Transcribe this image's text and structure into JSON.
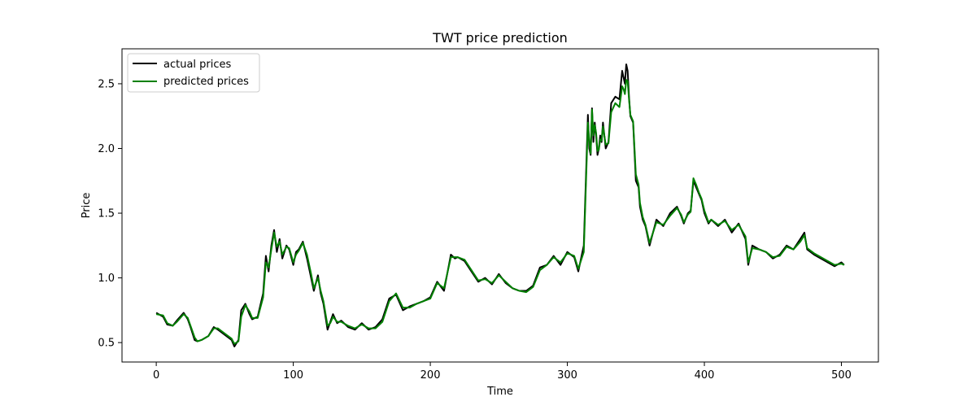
{
  "chart_data": {
    "type": "line",
    "title": "TWT price prediction",
    "xlabel": "Time",
    "ylabel": "Price",
    "xlim": [
      -25,
      527
    ],
    "ylim": [
      0.35,
      2.77
    ],
    "xticks": [
      0,
      100,
      200,
      300,
      400,
      500
    ],
    "yticks": [
      0.5,
      1.0,
      1.5,
      2.0,
      2.5
    ],
    "xtick_labels": [
      "0",
      "100",
      "200",
      "300",
      "400",
      "500"
    ],
    "ytick_labels": [
      "0.5",
      "1.0",
      "1.5",
      "2.0",
      "2.5"
    ],
    "grid": false,
    "legend_position": "upper-left",
    "series": [
      {
        "name": "actual prices",
        "color": "#000000",
        "x": [
          0,
          5,
          8,
          12,
          15,
          20,
          23,
          25,
          28,
          30,
          33,
          38,
          42,
          45,
          50,
          55,
          57,
          60,
          62,
          65,
          68,
          70,
          74,
          78,
          80,
          82,
          84,
          86,
          88,
          90,
          92,
          95,
          97,
          100,
          102,
          104,
          107,
          110,
          113,
          115,
          118,
          120,
          122,
          125,
          127,
          129,
          132,
          135,
          140,
          145,
          150,
          155,
          160,
          165,
          170,
          175,
          180,
          185,
          190,
          195,
          200,
          205,
          210,
          215,
          218,
          220,
          225,
          230,
          235,
          240,
          245,
          250,
          255,
          260,
          265,
          270,
          275,
          280,
          285,
          290,
          295,
          300,
          305,
          308,
          312,
          315,
          316,
          317,
          318,
          319,
          320,
          321,
          322,
          323,
          324,
          325,
          326,
          328,
          330,
          332,
          335,
          338,
          340,
          341,
          342,
          343,
          344,
          345,
          346,
          348,
          350,
          352,
          353,
          355,
          357,
          360,
          365,
          370,
          375,
          380,
          383,
          385,
          388,
          390,
          392,
          394,
          396,
          398,
          400,
          403,
          405,
          410,
          415,
          420,
          425,
          430,
          432,
          435,
          440,
          445,
          450,
          455,
          460,
          465,
          470,
          473,
          475,
          480,
          485,
          490,
          495,
          500,
          502
        ],
        "y": [
          0.73,
          0.7,
          0.64,
          0.63,
          0.67,
          0.73,
          0.68,
          0.62,
          0.52,
          0.51,
          0.52,
          0.55,
          0.62,
          0.6,
          0.56,
          0.52,
          0.47,
          0.52,
          0.75,
          0.8,
          0.72,
          0.68,
          0.7,
          0.88,
          1.17,
          1.05,
          1.25,
          1.37,
          1.2,
          1.3,
          1.15,
          1.25,
          1.22,
          1.1,
          1.2,
          1.22,
          1.28,
          1.15,
          1.0,
          0.9,
          1.02,
          0.88,
          0.8,
          0.6,
          0.66,
          0.72,
          0.65,
          0.67,
          0.62,
          0.6,
          0.65,
          0.6,
          0.62,
          0.68,
          0.84,
          0.87,
          0.75,
          0.78,
          0.8,
          0.82,
          0.85,
          0.97,
          0.9,
          1.18,
          1.15,
          1.16,
          1.13,
          1.05,
          0.97,
          1.0,
          0.95,
          1.03,
          0.96,
          0.92,
          0.9,
          0.9,
          0.94,
          1.08,
          1.1,
          1.17,
          1.1,
          1.2,
          1.16,
          1.05,
          1.25,
          2.26,
          2.0,
          1.95,
          2.31,
          2.05,
          2.2,
          2.1,
          1.95,
          2.0,
          2.1,
          2.05,
          2.2,
          2.0,
          2.05,
          2.35,
          2.4,
          2.38,
          2.6,
          2.55,
          2.5,
          2.65,
          2.6,
          2.4,
          2.25,
          2.2,
          1.75,
          1.7,
          1.55,
          1.45,
          1.4,
          1.25,
          1.45,
          1.4,
          1.5,
          1.55,
          1.48,
          1.42,
          1.5,
          1.52,
          1.75,
          1.7,
          1.65,
          1.6,
          1.5,
          1.42,
          1.45,
          1.4,
          1.45,
          1.35,
          1.42,
          1.3,
          1.1,
          1.25,
          1.22,
          1.2,
          1.15,
          1.18,
          1.25,
          1.22,
          1.3,
          1.35,
          1.22,
          1.18,
          1.15,
          1.12,
          1.09,
          1.12,
          1.1
        ]
      },
      {
        "name": "predicted prices",
        "color": "#008000",
        "x": [
          0,
          5,
          8,
          12,
          15,
          20,
          23,
          25,
          28,
          30,
          33,
          38,
          42,
          45,
          50,
          55,
          57,
          60,
          62,
          65,
          68,
          70,
          74,
          78,
          80,
          82,
          84,
          86,
          88,
          90,
          92,
          95,
          97,
          100,
          102,
          104,
          107,
          110,
          113,
          115,
          118,
          120,
          122,
          125,
          127,
          129,
          132,
          135,
          140,
          145,
          150,
          155,
          160,
          165,
          170,
          175,
          180,
          185,
          190,
          195,
          200,
          205,
          210,
          215,
          218,
          220,
          225,
          230,
          235,
          240,
          245,
          250,
          255,
          260,
          265,
          270,
          275,
          280,
          285,
          290,
          295,
          300,
          305,
          308,
          312,
          315,
          316,
          317,
          318,
          319,
          320,
          321,
          322,
          323,
          324,
          325,
          326,
          328,
          330,
          332,
          335,
          338,
          340,
          341,
          342,
          343,
          344,
          345,
          346,
          348,
          350,
          352,
          353,
          355,
          357,
          360,
          365,
          370,
          375,
          380,
          383,
          385,
          388,
          390,
          392,
          394,
          396,
          398,
          400,
          403,
          405,
          410,
          415,
          420,
          425,
          430,
          432,
          435,
          440,
          445,
          450,
          455,
          460,
          465,
          470,
          473,
          475,
          480,
          485,
          490,
          495,
          500,
          502
        ],
        "y": [
          0.72,
          0.71,
          0.65,
          0.63,
          0.66,
          0.72,
          0.69,
          0.63,
          0.54,
          0.51,
          0.52,
          0.55,
          0.61,
          0.61,
          0.57,
          0.53,
          0.49,
          0.51,
          0.7,
          0.79,
          0.74,
          0.69,
          0.69,
          0.85,
          1.12,
          1.08,
          1.22,
          1.35,
          1.24,
          1.28,
          1.18,
          1.24,
          1.23,
          1.12,
          1.18,
          1.21,
          1.27,
          1.18,
          1.03,
          0.92,
          1.0,
          0.9,
          0.82,
          0.63,
          0.65,
          0.7,
          0.66,
          0.66,
          0.63,
          0.61,
          0.64,
          0.61,
          0.61,
          0.66,
          0.82,
          0.88,
          0.77,
          0.77,
          0.8,
          0.82,
          0.84,
          0.96,
          0.92,
          1.16,
          1.16,
          1.16,
          1.14,
          1.06,
          0.98,
          0.99,
          0.96,
          1.02,
          0.97,
          0.92,
          0.9,
          0.89,
          0.93,
          1.06,
          1.1,
          1.16,
          1.12,
          1.19,
          1.17,
          1.07,
          1.2,
          2.2,
          2.05,
          1.96,
          2.3,
          2.1,
          2.18,
          2.12,
          1.98,
          1.99,
          2.07,
          2.06,
          2.17,
          2.03,
          2.04,
          2.28,
          2.35,
          2.32,
          2.48,
          2.46,
          2.42,
          2.53,
          2.52,
          2.38,
          2.26,
          2.21,
          1.8,
          1.72,
          1.58,
          1.47,
          1.41,
          1.27,
          1.43,
          1.41,
          1.48,
          1.54,
          1.49,
          1.43,
          1.49,
          1.51,
          1.77,
          1.72,
          1.66,
          1.61,
          1.52,
          1.43,
          1.45,
          1.41,
          1.44,
          1.37,
          1.41,
          1.32,
          1.12,
          1.23,
          1.22,
          1.2,
          1.16,
          1.17,
          1.24,
          1.22,
          1.28,
          1.33,
          1.23,
          1.19,
          1.16,
          1.13,
          1.1,
          1.11,
          1.1
        ]
      }
    ]
  }
}
